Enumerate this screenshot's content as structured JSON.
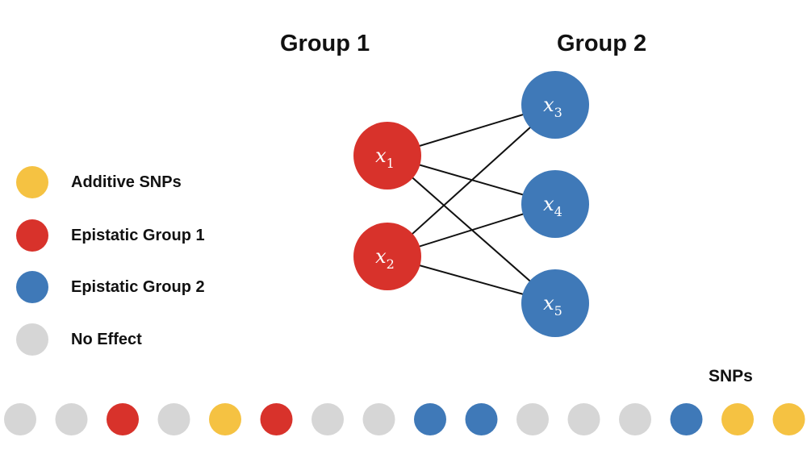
{
  "groups": {
    "group1_title": "Group 1",
    "group2_title": "Group 2"
  },
  "legend": [
    {
      "label": "Additive SNPs",
      "color": "#f5c242"
    },
    {
      "label": "Epistatic Group 1",
      "color": "#d8322b"
    },
    {
      "label": "Epistatic Group 2",
      "color": "#3f79b8"
    },
    {
      "label": "No Effect",
      "color": "#d6d6d6"
    }
  ],
  "nodes": [
    {
      "id": "x1",
      "var": "x",
      "sub": "1",
      "group": 1
    },
    {
      "id": "x2",
      "var": "x",
      "sub": "2",
      "group": 1
    },
    {
      "id": "x3",
      "var": "x",
      "sub": "3",
      "group": 2
    },
    {
      "id": "x4",
      "var": "x",
      "sub": "4",
      "group": 2
    },
    {
      "id": "x5",
      "var": "x",
      "sub": "5",
      "group": 2
    }
  ],
  "edges": [
    [
      "x1",
      "x3"
    ],
    [
      "x1",
      "x4"
    ],
    [
      "x1",
      "x5"
    ],
    [
      "x2",
      "x3"
    ],
    [
      "x2",
      "x4"
    ],
    [
      "x2",
      "x5"
    ]
  ],
  "snps_title": "SNPs",
  "snp_row": [
    "none",
    "none",
    "group1",
    "none",
    "additive",
    "group1",
    "none",
    "none",
    "group2",
    "group2",
    "none",
    "none",
    "none",
    "group2",
    "additive",
    "additive"
  ],
  "colors": {
    "additive": "#f5c242",
    "group1": "#d8322b",
    "group2": "#3f79b8",
    "none": "#d6d6d6",
    "edge": "#111111"
  }
}
